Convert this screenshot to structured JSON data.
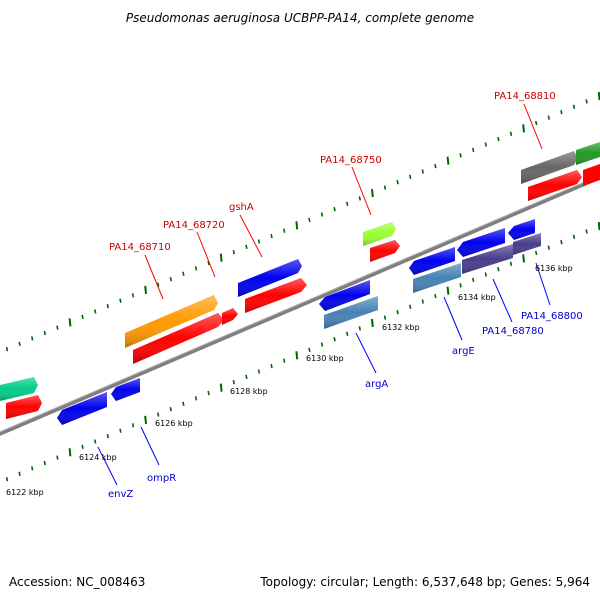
{
  "header": {
    "title": "Pseudomonas aeruginosa UCBPP-PA14, complete genome"
  },
  "footer": {
    "accession": "Accession: NC_008463",
    "summary": "Topology: circular; Length: 6,537,648 bp; Genes: 5,964"
  },
  "colors": {
    "backbone": "#7f7f7f",
    "tick": "#006400",
    "red_gene": "#ff0000",
    "blue_gene": "#0000ee",
    "orange_gene": "#ff9900",
    "teal_gene": "#00cc88",
    "lime_gene": "#99ff33",
    "steel_gene": "#4682b4",
    "purple_gene": "#483d8b",
    "gray_gene": "#666666",
    "green_gene": "#229922",
    "label_red": "#cc0000",
    "label_blue": "#0000cc"
  },
  "scale_labels": [
    "6122 kbp",
    "6124 kbp",
    "6126 kbp",
    "6128 kbp",
    "6130 kbp",
    "6132 kbp",
    "6134 kbp",
    "6136 kbp"
  ],
  "gene_labels_top": [
    "PA14_68710",
    "PA14_68720",
    "gshA",
    "PA14_68750",
    "PA14_68810"
  ],
  "gene_labels_bottom": [
    "envZ",
    "ompR",
    "argA",
    "argE",
    "PA14_68780",
    "PA14_68800"
  ]
}
